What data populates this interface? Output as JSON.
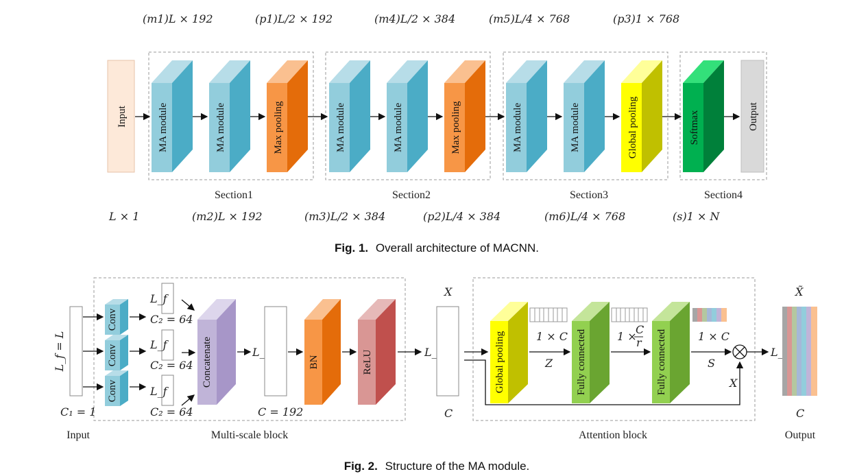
{
  "fig1": {
    "caption_prefix": "Fig. 1.",
    "caption_text": "Overall architecture of MACNN.",
    "top_dims": [
      "(m1)L × 192",
      "(p1)L/2 × 192",
      "(m4)L/2 × 384",
      "(m5)L/4 × 768",
      "(p3)1 × 768"
    ],
    "bottom_dims": [
      "L × 1",
      "(m2)L × 192",
      "(m3)L/2 × 384",
      "(p2)L/4 × 384",
      "(m6)L/4 × 768",
      "(s)1 × N"
    ],
    "sections": [
      "Section1",
      "Section2",
      "Section3",
      "Section4"
    ],
    "input_label": "Input",
    "output_label": "Output",
    "ma": "MA module",
    "maxpool": "Max pooling",
    "globalpool": "Global pooling",
    "softmax": "Softmax"
  },
  "fig2": {
    "caption_prefix": "Fig. 2.",
    "caption_text": "Structure of the MA module.",
    "input_dim": "L_f = L",
    "c1": "C₁ = 1",
    "conv": "Conv",
    "lf": "L_f",
    "c2": "C₂ = 64",
    "concat": "Concatenate",
    "c192": "C = 192",
    "bn": "BN",
    "relu": "ReLU",
    "x": "X",
    "c": "C",
    "gp": "Global pooling",
    "fc": "Fully connected",
    "one_c": "1 × C",
    "one_cr_prefix": "1 ×",
    "cr_num": "C",
    "cr_den": "r",
    "z": "Z",
    "s": "S",
    "xtilde": "X̃",
    "multiscale_label": "Multi-scale block",
    "attention_label": "Attention block",
    "input_label": "Input",
    "output_label": "Output"
  },
  "colors": {
    "ma_front": "#92cddc",
    "ma_side": "#4bacc6",
    "ma_top": "#b7dde8",
    "mp_front": "#f79646",
    "mp_side": "#e46c0a",
    "mp_top": "#fac090",
    "gp_front": "#ffff00",
    "gp_side": "#c0c000",
    "gp_top": "#ffff99",
    "sm_front": "#00b050",
    "sm_side": "#00803a",
    "sm_top": "#33e07a",
    "cat_front": "#c0b4d8",
    "cat_side": "#a796c8",
    "cat_top": "#ddd6ec",
    "bn_front": "#f79646",
    "bn_side": "#e46c0a",
    "bn_top": "#fac090",
    "relu_front": "#d99694",
    "relu_side": "#c0504d",
    "relu_top": "#e6b9b8",
    "fc_front": "#92d050",
    "fc_side": "#6aa531",
    "fc_top": "#c4e59a",
    "input_fill": "#fde9d9",
    "output_fill": "#d9d9d9"
  }
}
